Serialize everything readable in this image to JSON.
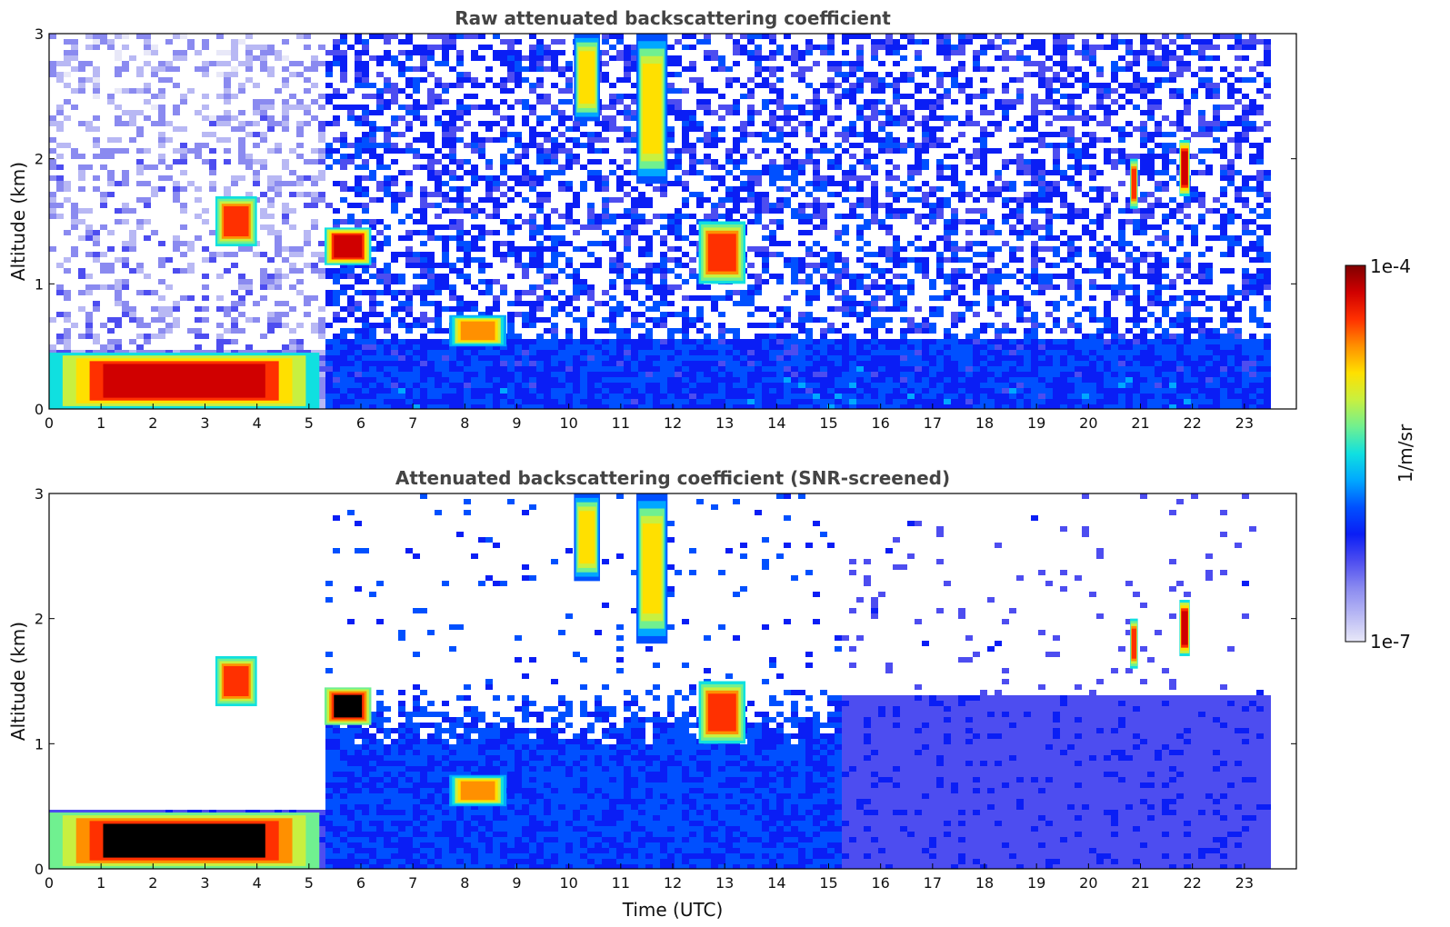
{
  "chart_data": [
    {
      "type": "heatmap",
      "id": "raw",
      "title": "Raw attenuated backscattering coefficient",
      "xlabel": "",
      "ylabel": "Altitude (km)",
      "xlim": [
        0,
        24
      ],
      "ylim": [
        0,
        3
      ],
      "xticks": [
        0,
        1,
        2,
        3,
        4,
        5,
        6,
        7,
        8,
        9,
        10,
        11,
        12,
        13,
        14,
        15,
        16,
        17,
        18,
        19,
        20,
        21,
        22,
        23
      ],
      "yticks": [
        0,
        1,
        2,
        3
      ],
      "data_end_hour": 23.5,
      "features": [
        {
          "name": "boundary-layer-aerosol",
          "x": [
            0,
            5.2
          ],
          "y": [
            0,
            0.45
          ],
          "level": 0.95
        },
        {
          "name": "low-cloud-1",
          "x": [
            3.2,
            4.0
          ],
          "y": [
            1.3,
            1.7
          ],
          "level": 0.85
        },
        {
          "name": "low-cloud-2",
          "x": [
            5.3,
            6.2
          ],
          "y": [
            1.15,
            1.45
          ],
          "level": 0.95
        },
        {
          "name": "aerosol-layer",
          "x": [
            7.7,
            8.8
          ],
          "y": [
            0.5,
            0.75
          ],
          "level": 0.8
        },
        {
          "name": "cirrus-1",
          "x": [
            10.1,
            10.6
          ],
          "y": [
            2.3,
            3.0
          ],
          "level": 0.7
        },
        {
          "name": "cirrus-2",
          "x": [
            11.3,
            11.9
          ],
          "y": [
            1.8,
            3.0
          ],
          "level": 0.7
        },
        {
          "name": "mid-cloud",
          "x": [
            12.5,
            13.4
          ],
          "y": [
            1.0,
            1.5
          ],
          "level": 0.85
        },
        {
          "name": "high-cloud-1",
          "x": [
            20.8,
            20.95
          ],
          "y": [
            1.6,
            2.0
          ],
          "level": 0.85
        },
        {
          "name": "high-cloud-2",
          "x": [
            21.75,
            21.95
          ],
          "y": [
            1.7,
            2.15
          ],
          "level": 0.95
        }
      ]
    },
    {
      "type": "heatmap",
      "id": "snr",
      "title": "Attenuated backscattering coefficient (SNR-screened)",
      "xlabel": "Time (UTC)",
      "ylabel": "Altitude (km)",
      "xlim": [
        0,
        24
      ],
      "ylim": [
        0,
        3
      ],
      "xticks": [
        0,
        1,
        2,
        3,
        4,
        5,
        6,
        7,
        8,
        9,
        10,
        11,
        12,
        13,
        14,
        15,
        16,
        17,
        18,
        19,
        20,
        21,
        22,
        23
      ],
      "yticks": [
        0,
        1,
        2,
        3
      ],
      "data_end_hour": 23.5,
      "features": [
        {
          "name": "boundary-layer-aerosol",
          "x": [
            0,
            5.2
          ],
          "y": [
            0,
            0.45
          ],
          "level": 1.0
        },
        {
          "name": "low-cloud-1",
          "x": [
            3.2,
            4.0
          ],
          "y": [
            1.3,
            1.7
          ],
          "level": 0.85
        },
        {
          "name": "low-cloud-2",
          "x": [
            5.3,
            6.2
          ],
          "y": [
            1.15,
            1.45
          ],
          "level": 1.0
        },
        {
          "name": "aerosol-layer",
          "x": [
            7.7,
            8.8
          ],
          "y": [
            0.5,
            0.75
          ],
          "level": 0.8
        },
        {
          "name": "cirrus-1",
          "x": [
            10.1,
            10.6
          ],
          "y": [
            2.3,
            3.0
          ],
          "level": 0.7
        },
        {
          "name": "cirrus-2",
          "x": [
            11.3,
            11.9
          ],
          "y": [
            1.8,
            3.0
          ],
          "level": 0.7
        },
        {
          "name": "mid-cloud",
          "x": [
            12.5,
            13.4
          ],
          "y": [
            1.0,
            1.5
          ],
          "level": 0.85
        },
        {
          "name": "high-cloud-1",
          "x": [
            20.8,
            20.95
          ],
          "y": [
            1.6,
            2.0
          ],
          "level": 0.85
        },
        {
          "name": "high-cloud-2",
          "x": [
            21.75,
            21.95
          ],
          "y": [
            1.7,
            2.15
          ],
          "level": 0.95
        }
      ]
    }
  ],
  "colorbar": {
    "label": "1/m/sr",
    "max_label": "1e-4",
    "min_label": "1e-7",
    "colormap": [
      "#e8e8f8",
      "#b8b8f4",
      "#8a8af0",
      "#4d4df0",
      "#0a1ef5",
      "#0050ff",
      "#00a8ff",
      "#10e0e0",
      "#70f090",
      "#c8f040",
      "#ffe000",
      "#ff9000",
      "#ff3000",
      "#d00000",
      "#800000"
    ]
  }
}
